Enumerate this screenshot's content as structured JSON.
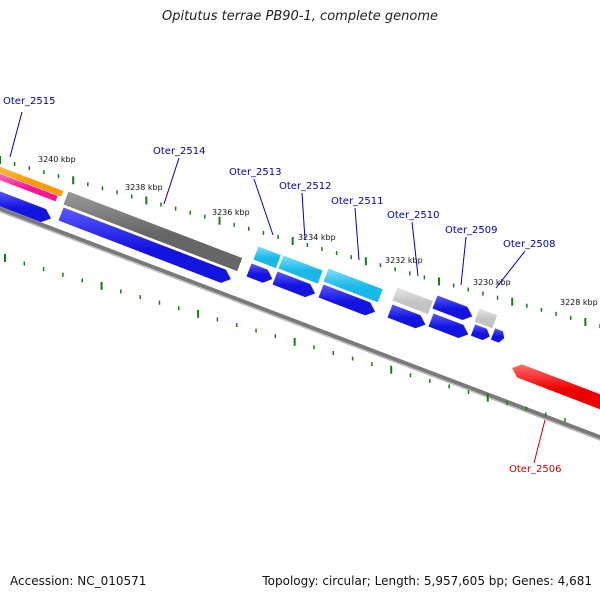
{
  "title": "Opitutus terrae PB90-1, complete genome",
  "footer": {
    "accession": "Accession: NC_010571",
    "summary": "Topology: circular; Length: 5,957,605 bp; Genes: 4,681"
  },
  "colors": {
    "backbone": "#7a7a7a",
    "tick": "#1a7a1a",
    "label_blue": "#0000b0",
    "label_red": "#cc0000",
    "cds_blue": "#1414e0",
    "cds_gray": "#666666",
    "cds_lightgray": "#c4c4c4",
    "cds_cyan": "#18b8e8",
    "cds_red": "#ee0000",
    "orange": "#ff9900",
    "pink": "#ff1493"
  },
  "kbp_labels": [
    "3240 kbp",
    "3238 kbp",
    "3236 kbp",
    "3234 kbp",
    "3232 kbp",
    "3230 kbp",
    "3228 kbp"
  ],
  "gene_labels": [
    {
      "name": "Oter_2515",
      "color": "blue"
    },
    {
      "name": "Oter_2514",
      "color": "blue"
    },
    {
      "name": "Oter_2513",
      "color": "blue"
    },
    {
      "name": "Oter_2512",
      "color": "blue"
    },
    {
      "name": "Oter_2511",
      "color": "blue"
    },
    {
      "name": "Oter_2510",
      "color": "blue"
    },
    {
      "name": "Oter_2509",
      "color": "blue"
    },
    {
      "name": "Oter_2508",
      "color": "blue"
    },
    {
      "name": "Oter_2506",
      "color": "red"
    }
  ]
}
